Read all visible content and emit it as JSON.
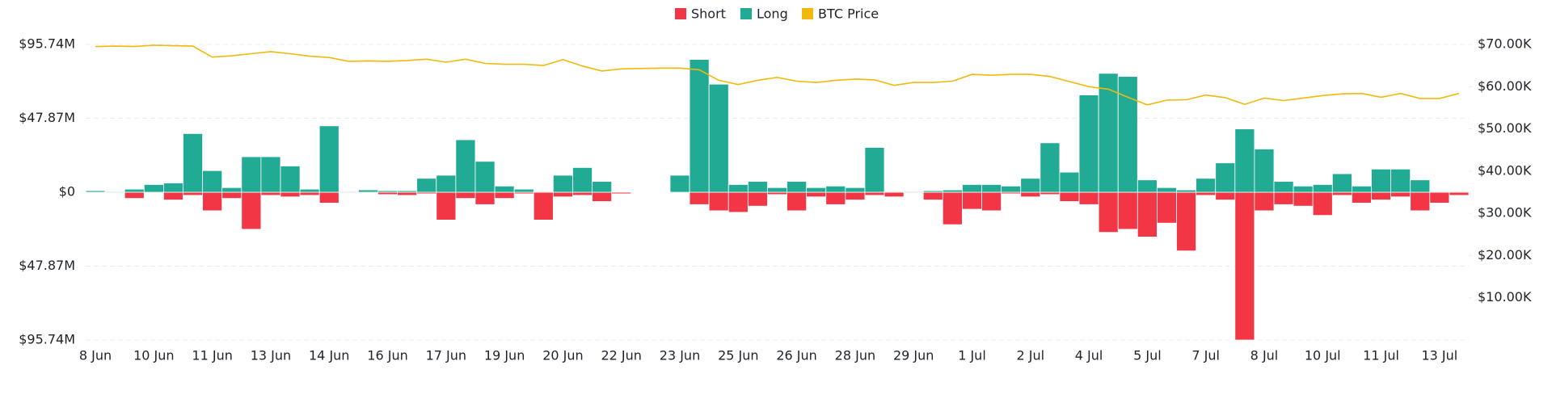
{
  "chart_data": {
    "type": "bar",
    "categories": [
      "8 Jun",
      null,
      null,
      "10 Jun",
      null,
      null,
      "11 Jun",
      null,
      null,
      "13 Jun",
      null,
      null,
      "14 Jun",
      null,
      null,
      "16 Jun",
      null,
      null,
      "17 Jun",
      null,
      null,
      "19 Jun",
      null,
      null,
      "20 Jun",
      null,
      null,
      "22 Jun",
      null,
      null,
      "23 Jun",
      null,
      null,
      "25 Jun",
      null,
      null,
      "26 Jun",
      null,
      null,
      "28 Jun",
      null,
      null,
      "29 Jun",
      null,
      null,
      "1 Jul",
      null,
      null,
      "2 Jul",
      null,
      null,
      "4 Jul",
      null,
      null,
      "5 Jul",
      null,
      null,
      "7 Jul",
      null,
      null,
      "8 Jul",
      null,
      null,
      "10 Jul",
      null,
      null,
      "11 Jul",
      null,
      null,
      "13 Jul",
      null
    ],
    "series": [
      {
        "name": "Short",
        "color": "#f23645",
        "values": [
          0,
          -0.5,
          -4,
          -0.5,
          -5,
          -2,
          -12,
          -4,
          -24,
          -2,
          -3,
          -2,
          -7,
          -0.5,
          -0.5,
          -1.5,
          -2,
          -1,
          -18,
          -4,
          -8,
          -4,
          -1,
          -18,
          -3,
          -2,
          -6,
          -1,
          -0.3,
          -0.3,
          -0.5,
          -8,
          -12,
          -13,
          -9,
          -1.5,
          -12,
          -3,
          -8,
          -5,
          -2,
          -3,
          -0.5,
          -5,
          -21,
          -11,
          -12,
          -1,
          -3,
          -1.5,
          -6,
          -8,
          -26,
          -24,
          -29,
          -20,
          -38,
          -2,
          -5,
          -95.74,
          -12,
          -8,
          -9,
          -15,
          -2,
          -7,
          -5,
          -3,
          -12,
          -7,
          -2
        ]
      },
      {
        "name": "Long",
        "color": "#22ab94",
        "values": [
          1,
          0.5,
          2,
          5,
          6,
          38,
          14,
          3,
          23,
          23,
          17,
          2,
          43,
          0.5,
          1.5,
          1,
          1,
          9,
          11,
          34,
          20,
          4,
          2,
          0.5,
          11,
          16,
          7,
          0.3,
          0.2,
          0.2,
          11,
          86,
          70,
          5,
          7,
          3,
          7,
          3,
          4,
          3,
          29,
          0.5,
          0.5,
          1,
          1.5,
          5,
          5,
          4,
          9,
          32,
          13,
          63,
          77,
          75,
          8,
          3,
          1.5,
          9,
          19,
          41,
          28,
          7,
          4,
          5,
          12,
          4,
          15,
          15,
          8,
          0.5,
          0.5
        ]
      },
      {
        "name": "BTC Price",
        "color": "#f0b90b",
        "type": "line",
        "axis": "y2",
        "values": [
          69500,
          69600,
          69500,
          69800,
          69700,
          69600,
          67000,
          67300,
          67800,
          68300,
          67800,
          67200,
          66900,
          66000,
          66100,
          66000,
          66200,
          66500,
          65800,
          66500,
          65500,
          65300,
          65300,
          65000,
          66400,
          64900,
          63700,
          64200,
          64300,
          64400,
          64400,
          64000,
          61500,
          60500,
          61500,
          62200,
          61300,
          61000,
          61500,
          61800,
          61600,
          60300,
          61000,
          61000,
          61300,
          62900,
          62700,
          62900,
          62900,
          62400,
          61200,
          60000,
          59400,
          57500,
          55700,
          56800,
          56900,
          58000,
          57400,
          55800,
          57300,
          56700,
          57300,
          57900,
          58300,
          58400,
          57500,
          58400,
          57200,
          57200,
          58400
        ]
      }
    ],
    "ylim": [
      -95.74,
      95.74
    ],
    "yticks": [
      {
        "value": -95.74,
        "label": "$95.74M"
      },
      {
        "value": -47.87,
        "label": "$47.87M"
      },
      {
        "value": 0,
        "label": "$0"
      },
      {
        "value": 47.87,
        "label": "$47.87M"
      },
      {
        "value": 95.74,
        "label": "$95.74M"
      }
    ],
    "y2lim": [
      0,
      70000
    ],
    "y2ticks": [
      {
        "value": 10000,
        "label": "$10.00K"
      },
      {
        "value": 20000,
        "label": "$20.00K"
      },
      {
        "value": 30000,
        "label": "$30.00K"
      },
      {
        "value": 40000,
        "label": "$40.00K"
      },
      {
        "value": 50000,
        "label": "$50.00K"
      },
      {
        "value": 60000,
        "label": "$60.00K"
      },
      {
        "value": 70000,
        "label": "$70.00K"
      }
    ],
    "grid": true,
    "legend": "top"
  }
}
